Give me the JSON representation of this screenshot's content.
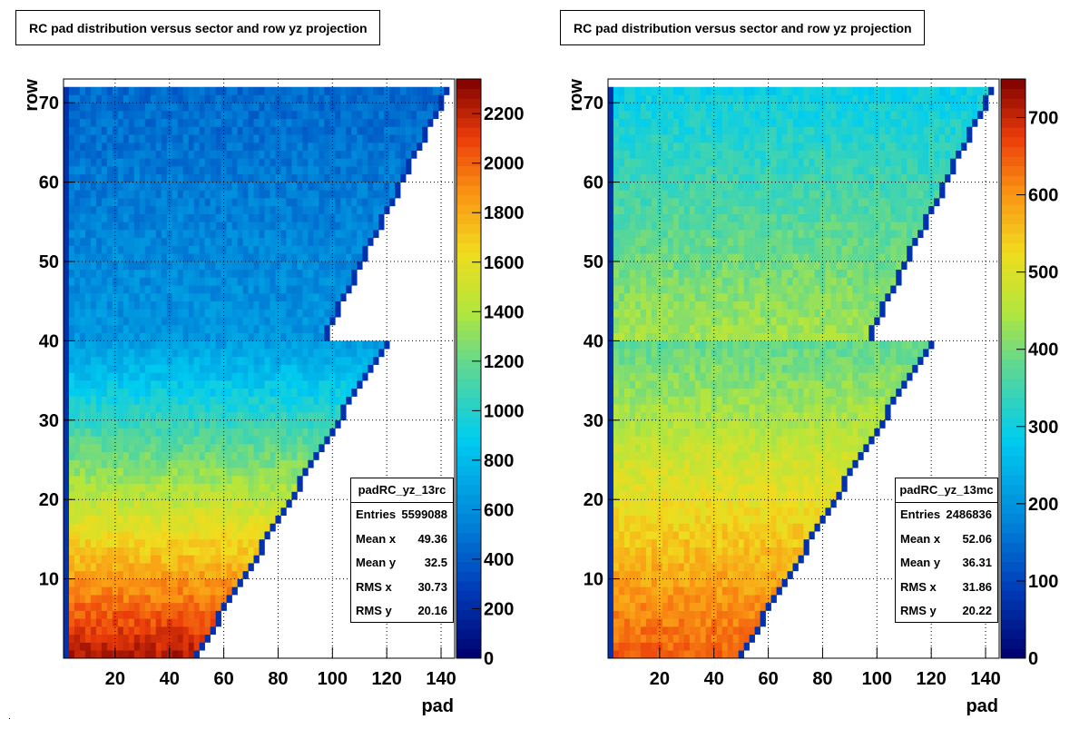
{
  "chart_data": [
    {
      "type": "heatmap",
      "title": "RC pad distribution versus sector and row yz projection",
      "xlabel": "pad",
      "ylabel": "row",
      "xlim": [
        1,
        145
      ],
      "ylim": [
        0,
        73
      ],
      "xticks": [
        "20",
        "40",
        "60",
        "80",
        "100",
        "120",
        "140"
      ],
      "yticks": [
        "10",
        "20",
        "30",
        "40",
        "50",
        "60",
        "70"
      ],
      "zlim": [
        0,
        2340
      ],
      "zticks": [
        "0",
        "200",
        "400",
        "600",
        "800",
        "1000",
        "1200",
        "1400",
        "1600",
        "1800",
        "2000",
        "2200"
      ],
      "grid": true,
      "stats": {
        "name": "padRC_yz_13rc",
        "rows": [
          {
            "label": "Entries",
            "value": "5599088"
          },
          {
            "label": "Mean x",
            "value": "49.36"
          },
          {
            "label": "Mean y",
            "value": "32.5"
          },
          {
            "label": "RMS x",
            "value": "30.73"
          },
          {
            "label": "RMS y",
            "value": "20.16"
          }
        ]
      }
    },
    {
      "type": "heatmap",
      "title": "RC pad distribution versus sector and row yz projection",
      "xlabel": "pad",
      "ylabel": "row",
      "xlim": [
        1,
        145
      ],
      "ylim": [
        0,
        73
      ],
      "xticks": [
        "20",
        "40",
        "60",
        "80",
        "100",
        "120",
        "140"
      ],
      "yticks": [
        "10",
        "20",
        "30",
        "40",
        "50",
        "60",
        "70"
      ],
      "zlim": [
        0,
        750
      ],
      "zticks": [
        "0",
        "100",
        "200",
        "300",
        "400",
        "500",
        "600",
        "700"
      ],
      "grid": true,
      "stats": {
        "name": "padRC_yz_13mc",
        "rows": [
          {
            "label": "Entries",
            "value": "2486836"
          },
          {
            "label": "Mean x",
            "value": "52.06"
          },
          {
            "label": "Mean y",
            "value": "36.31"
          },
          {
            "label": "RMS x",
            "value": "31.86"
          },
          {
            "label": "RMS y",
            "value": "20.22"
          }
        ]
      }
    }
  ]
}
